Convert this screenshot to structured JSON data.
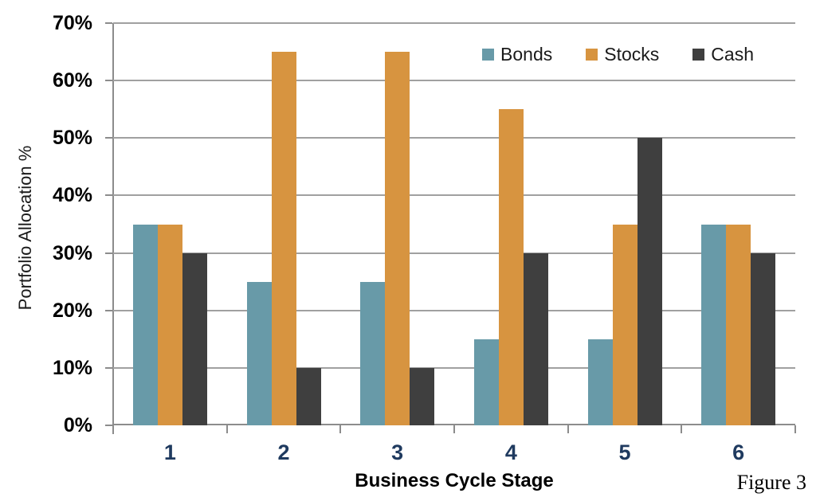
{
  "figure": {
    "caption": "Figure 3"
  },
  "chart_data": {
    "type": "bar",
    "title": "",
    "categories": [
      "1",
      "2",
      "3",
      "4",
      "5",
      "6"
    ],
    "series": [
      {
        "name": "Bonds",
        "color": "#689AA8",
        "values": [
          35,
          25,
          25,
          15,
          15,
          35
        ]
      },
      {
        "name": "Stocks",
        "color": "#D79440",
        "values": [
          35,
          65,
          65,
          55,
          35,
          35
        ]
      },
      {
        "name": "Cash",
        "color": "#3F3F3F",
        "values": [
          30,
          10,
          10,
          30,
          50,
          30
        ]
      }
    ],
    "xlabel": "Business Cycle Stage",
    "ylabel": "Portfolio Allocation %",
    "ylim": [
      0,
      70
    ],
    "ytick_step": 10,
    "yticks": [
      "0%",
      "10%",
      "20%",
      "30%",
      "40%",
      "50%",
      "60%",
      "70%"
    ],
    "grid": "horizontal",
    "legend_position": "top-right-inside",
    "colors": {
      "xtick_label": "#1F3A5F",
      "gridline": "#A0A0A0",
      "axis": "#8C8C8C"
    }
  }
}
